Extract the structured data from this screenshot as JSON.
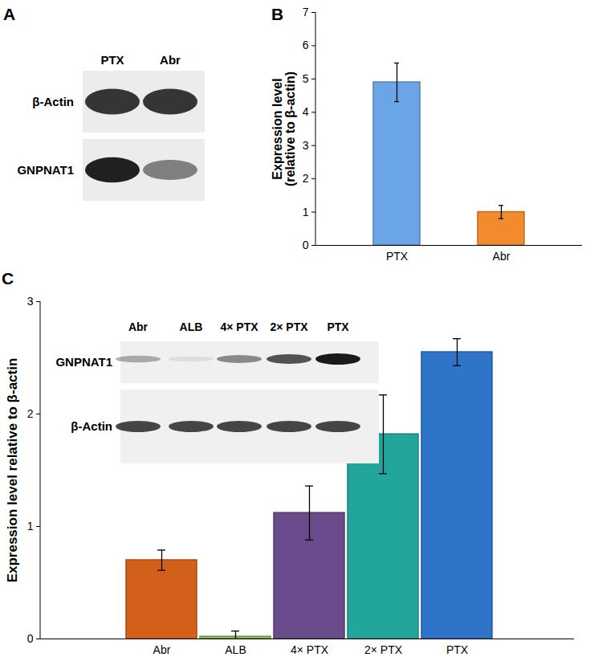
{
  "blot": {
    "panel": "A",
    "lanes": [
      "PTX",
      "Abr"
    ],
    "rows": [
      "β-Actin",
      "GNPNAT1"
    ]
  },
  "chart_data": [
    {
      "panel": "B",
      "type": "bar",
      "y_label": "Expression level\n(relative to β-actin)",
      "categories": [
        "PTX",
        "Abr"
      ],
      "values": [
        4.9,
        1.0
      ],
      "errors": [
        0.58,
        0.2
      ],
      "colors": [
        "#6aa6e6",
        "#f28a2e"
      ],
      "ylim": [
        0,
        7
      ],
      "yticks": [
        0,
        1,
        2,
        3,
        4,
        5,
        6,
        7
      ]
    },
    {
      "panel": "C",
      "type": "bar",
      "y_label": "Expression level relative to β-actin",
      "categories": [
        "Abr",
        "ALB",
        "4× PTX",
        "2× PTX",
        "PTX"
      ],
      "values": [
        0.7,
        0.02,
        1.12,
        1.82,
        2.55
      ],
      "errors": [
        0.09,
        0.05,
        0.24,
        0.35,
        0.12
      ],
      "colors": [
        "#d2601a",
        "#8cc04a",
        "#6a4c8c",
        "#22a69c",
        "#2e74c8"
      ],
      "ylim": [
        0,
        3
      ],
      "yticks": [
        0,
        1,
        2,
        3
      ],
      "inset": {
        "lanes": [
          "Abr",
          "ALB",
          "4× PTX",
          "2× PTX",
          "PTX"
        ],
        "rows": [
          "GNPNAT1",
          "β-Actin"
        ]
      }
    }
  ]
}
